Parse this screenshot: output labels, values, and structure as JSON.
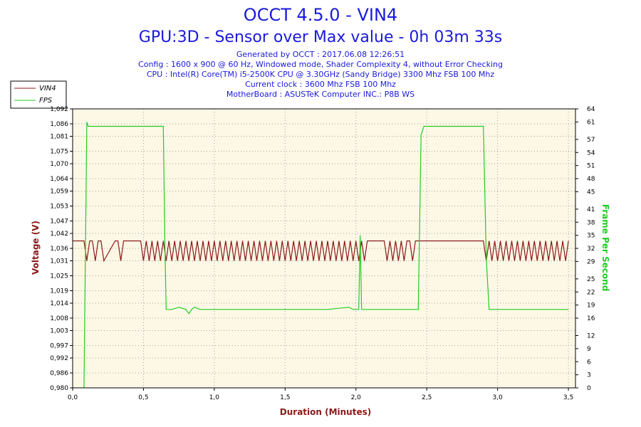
{
  "header": {
    "title_line1": "OCCT 4.5.0 - VIN4",
    "title_line2": "GPU:3D - Sensor over Max value - 0h 03m 33s",
    "info_lines": [
      "Generated by OCCT : 2017.06.08 12:26:51",
      "Config : 1600 x 900 @ 60 Hz, Windowed mode, Shader Complexity 4, without Error Checking",
      "CPU : Intel(R) Core(TM) i5-2500K CPU @ 3.30GHz (Sandy Bridge) 3300 Mhz FSB 100 Mhz",
      "Current clock : 3600 Mhz FSB 100 Mhz",
      "MotherBoard : ASUSTeK Computer INC.: P8B WS"
    ]
  },
  "colors": {
    "vin4": "#8b1a1a",
    "fps": "#22cc22",
    "plot_bg": "#fdf8e6",
    "title": "#1a1adc"
  },
  "chart_data": {
    "type": "line",
    "xlabel": "Duration (Minutes)",
    "ylabel_left": "Voltage (V)",
    "ylabel_right": "Frame Per Second",
    "xlim": [
      0,
      3.55
    ],
    "ylim_left": [
      0.98,
      1.092
    ],
    "ylim_right": [
      0,
      64
    ],
    "grid": true,
    "legend_position": "top-left",
    "x_ticks": [
      "0,0",
      "0,5",
      "1,0",
      "1,5",
      "2,0",
      "2,5",
      "3,0",
      "3,5"
    ],
    "x_tick_values": [
      0,
      0.5,
      1.0,
      1.5,
      2.0,
      2.5,
      3.0,
      3.5
    ],
    "y_left_ticks": [
      "0,980",
      "0,986",
      "0,992",
      "0,997",
      "1,003",
      "1,008",
      "1,014",
      "1,019",
      "1,025",
      "1,031",
      "1,036",
      "1,042",
      "1,047",
      "1,053",
      "1,059",
      "1,064",
      "1,070",
      "1,075",
      "1,081",
      "1,086",
      "1,092"
    ],
    "y_left_tick_values": [
      0.98,
      0.986,
      0.992,
      0.997,
      1.003,
      1.008,
      1.014,
      1.019,
      1.025,
      1.031,
      1.036,
      1.042,
      1.047,
      1.053,
      1.059,
      1.064,
      1.07,
      1.075,
      1.081,
      1.086,
      1.092
    ],
    "y_right_ticks": [
      "0",
      "3",
      "6",
      "9",
      "12",
      "16",
      "19",
      "22",
      "25",
      "29",
      "32",
      "35",
      "38",
      "41",
      "45",
      "48",
      "51",
      "54",
      "57",
      "61",
      "64"
    ],
    "y_right_tick_values": [
      0,
      3,
      6,
      9,
      12,
      16,
      19,
      22,
      25,
      29,
      32,
      35,
      38,
      41,
      45,
      48,
      51,
      54,
      57,
      61,
      64
    ],
    "series": [
      {
        "name": "VIN4",
        "axis": "left",
        "x": [
          0.0,
          0.08,
          0.1,
          0.12,
          0.14,
          0.16,
          0.18,
          0.2,
          0.22,
          0.3,
          0.32,
          0.34,
          0.36,
          0.38,
          0.4,
          0.48,
          0.5,
          0.52,
          0.54,
          0.56,
          0.58,
          0.6,
          0.62,
          0.64,
          0.66,
          0.68,
          0.7,
          0.72,
          0.74,
          0.76,
          0.78,
          0.8,
          0.82,
          0.84,
          0.86,
          0.88,
          0.9,
          0.92,
          0.94,
          0.96,
          0.98,
          1.0,
          1.02,
          1.04,
          1.06,
          1.08,
          1.1,
          1.12,
          1.14,
          1.16,
          1.18,
          1.2,
          1.22,
          1.24,
          1.26,
          1.28,
          1.3,
          1.32,
          1.34,
          1.36,
          1.38,
          1.4,
          1.42,
          1.44,
          1.46,
          1.48,
          1.5,
          1.52,
          1.54,
          1.56,
          1.58,
          1.6,
          1.62,
          1.64,
          1.66,
          1.68,
          1.7,
          1.72,
          1.74,
          1.76,
          1.78,
          1.8,
          1.82,
          1.84,
          1.86,
          1.88,
          1.9,
          1.92,
          1.94,
          1.96,
          1.98,
          2.0,
          2.02,
          2.04,
          2.06,
          2.08,
          2.1,
          2.2,
          2.22,
          2.24,
          2.26,
          2.28,
          2.3,
          2.32,
          2.34,
          2.36,
          2.38,
          2.4,
          2.42,
          2.44,
          2.9,
          2.92,
          2.94,
          2.96,
          2.98,
          3.0,
          3.02,
          3.04,
          3.06,
          3.08,
          3.1,
          3.12,
          3.14,
          3.16,
          3.18,
          3.2,
          3.22,
          3.24,
          3.26,
          3.28,
          3.3,
          3.32,
          3.34,
          3.36,
          3.38,
          3.4,
          3.42,
          3.44,
          3.46,
          3.48,
          3.5
        ],
        "y": [
          1.039,
          1.039,
          1.031,
          1.039,
          1.039,
          1.031,
          1.039,
          1.039,
          1.031,
          1.039,
          1.039,
          1.031,
          1.039,
          1.039,
          1.039,
          1.039,
          1.031,
          1.039,
          1.031,
          1.039,
          1.031,
          1.039,
          1.031,
          1.039,
          1.031,
          1.039,
          1.031,
          1.039,
          1.031,
          1.039,
          1.031,
          1.039,
          1.031,
          1.039,
          1.031,
          1.039,
          1.031,
          1.039,
          1.031,
          1.039,
          1.031,
          1.039,
          1.031,
          1.039,
          1.031,
          1.039,
          1.031,
          1.039,
          1.031,
          1.039,
          1.031,
          1.039,
          1.031,
          1.039,
          1.031,
          1.039,
          1.031,
          1.039,
          1.031,
          1.039,
          1.031,
          1.039,
          1.031,
          1.039,
          1.031,
          1.039,
          1.031,
          1.039,
          1.031,
          1.039,
          1.031,
          1.039,
          1.031,
          1.039,
          1.031,
          1.039,
          1.031,
          1.039,
          1.031,
          1.039,
          1.031,
          1.039,
          1.031,
          1.039,
          1.031,
          1.039,
          1.031,
          1.039,
          1.031,
          1.039,
          1.031,
          1.039,
          1.031,
          1.039,
          1.031,
          1.039,
          1.039,
          1.039,
          1.031,
          1.039,
          1.031,
          1.039,
          1.031,
          1.039,
          1.031,
          1.039,
          1.039,
          1.031,
          1.039,
          1.039,
          1.039,
          1.031,
          1.039,
          1.031,
          1.039,
          1.031,
          1.039,
          1.031,
          1.039,
          1.031,
          1.039,
          1.031,
          1.039,
          1.031,
          1.039,
          1.031,
          1.039,
          1.031,
          1.039,
          1.031,
          1.039,
          1.031,
          1.039,
          1.031,
          1.039,
          1.031,
          1.039,
          1.031,
          1.039,
          1.031,
          1.039
        ]
      },
      {
        "name": "FPS",
        "axis": "right",
        "x": [
          0.08,
          0.09,
          0.1,
          0.11,
          0.64,
          0.65,
          0.66,
          0.7,
          0.75,
          0.8,
          0.82,
          0.84,
          0.86,
          0.9,
          0.95,
          1.0,
          1.2,
          1.4,
          1.6,
          1.8,
          1.95,
          1.98,
          2.02,
          2.03,
          2.04,
          2.05,
          2.1,
          2.2,
          2.3,
          2.4,
          2.44,
          2.46,
          2.48,
          2.9,
          2.92,
          2.94,
          3.0,
          3.1,
          3.2,
          3.3,
          3.4,
          3.5
        ],
        "y": [
          0,
          30,
          61,
          60,
          60,
          35,
          18,
          18,
          18.5,
          18,
          17,
          18,
          18.5,
          18,
          18,
          18,
          18,
          18,
          18,
          18,
          18.5,
          18,
          18,
          35,
          18,
          18,
          18,
          18,
          18,
          18,
          18,
          58,
          60,
          60,
          30,
          18,
          18,
          18,
          18,
          18,
          18,
          18
        ]
      }
    ]
  }
}
